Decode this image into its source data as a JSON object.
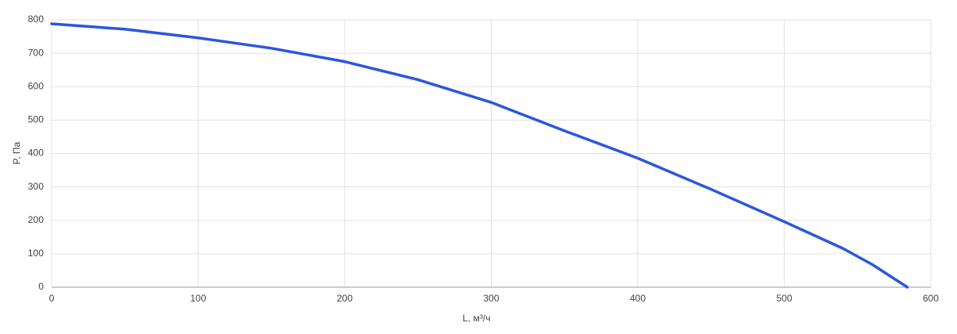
{
  "chart_data": {
    "type": "line",
    "x_label": "L, м³/ч",
    "y_label": "P, Па",
    "xlim": [
      0,
      600
    ],
    "xticks": [
      0,
      100,
      200,
      300,
      400,
      500,
      600
    ],
    "ylim": [
      0,
      800
    ],
    "yticks": [
      0,
      100,
      200,
      300,
      400,
      500,
      600,
      700,
      800
    ],
    "grid": true,
    "series": [
      {
        "color": "#2b57de",
        "x": [
          0,
          50,
          100,
          150,
          200,
          250,
          300,
          350,
          400,
          450,
          500,
          540,
          560,
          584
        ],
        "values": [
          788,
          772,
          746,
          715,
          675,
          621,
          553,
          468,
          386,
          293,
          196,
          116,
          68,
          0
        ]
      }
    ]
  }
}
